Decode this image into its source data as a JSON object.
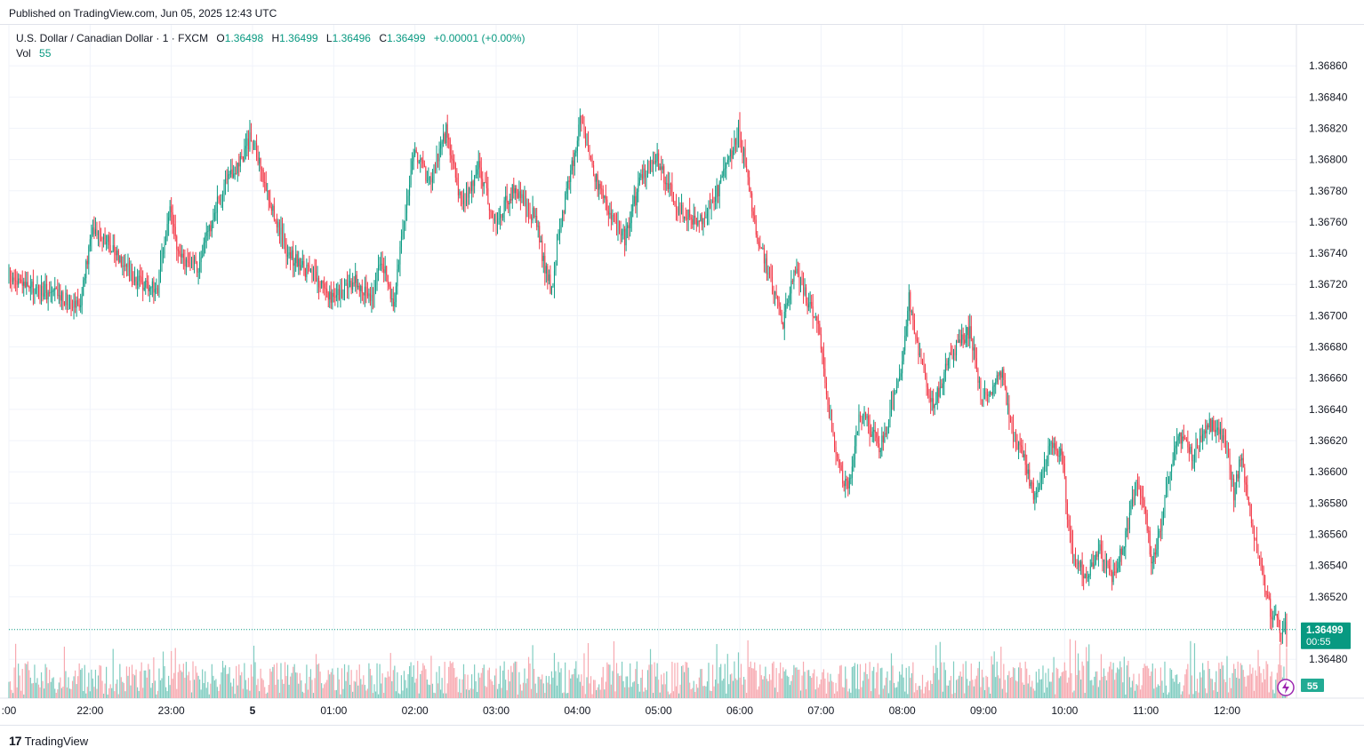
{
  "header": {
    "published": "Published on TradingView.com, Jun 05, 2025 12:43 UTC"
  },
  "legend": {
    "symbol": "U.S. Dollar / Canadian Dollar · 1 · FXCM",
    "o_label": "O",
    "o_value": "1.36498",
    "h_label": "H",
    "h_value": "1.36499",
    "l_label": "L",
    "l_value": "1.36496",
    "c_label": "C",
    "c_value": "1.36499",
    "change": "+0.00001 (+0.00%)",
    "vol_label": "Vol",
    "vol_value": "55"
  },
  "colors": {
    "up": "#089981",
    "down": "#f23645",
    "up_vol": "#7fccc0",
    "down_vol": "#f7a9b0",
    "grid": "#f0f3fa",
    "axis_text": "#131722"
  },
  "footer": {
    "brand_glyph": "17",
    "brand": "TradingView"
  },
  "chart_data": {
    "type": "candlestick",
    "symbol": "U.S. Dollar / Canadian Dollar",
    "interval": "1",
    "source": "FXCM",
    "y_ticks": [
      "1.36860",
      "1.36840",
      "1.36820",
      "1.36800",
      "1.36780",
      "1.36760",
      "1.36740",
      "1.36720",
      "1.36700",
      "1.36680",
      "1.36660",
      "1.36640",
      "1.36620",
      "1.36600",
      "1.36580",
      "1.36560",
      "1.36540",
      "1.36520",
      "1.36480"
    ],
    "ylim": [
      1.36475,
      1.36872
    ],
    "x_ticks": [
      ":00",
      "22:00",
      "23:00",
      "5",
      "01:00",
      "02:00",
      "03:00",
      "04:00",
      "05:00",
      "06:00",
      "07:00",
      "08:00",
      "09:00",
      "10:00",
      "11:00",
      "12:00"
    ],
    "x_tick_hours": [
      21.0,
      22.0,
      23.0,
      24.0,
      25.0,
      26.0,
      27.0,
      28.0,
      29.0,
      30.0,
      31.0,
      32.0,
      33.0,
      34.0,
      35.0,
      36.0
    ],
    "x_range_hours": [
      21.0,
      36.75
    ],
    "last_price": "1.36499",
    "countdown": "00:55",
    "last_volume": "55",
    "close_path": [
      [
        21.0,
        1.36725
      ],
      [
        21.25,
        1.36718
      ],
      [
        21.5,
        1.36715
      ],
      [
        21.9,
        1.36708
      ],
      [
        22.05,
        1.36758
      ],
      [
        22.35,
        1.3674
      ],
      [
        22.6,
        1.36722
      ],
      [
        22.85,
        1.36718
      ],
      [
        23.0,
        1.3677
      ],
      [
        23.1,
        1.36738
      ],
      [
        23.35,
        1.36732
      ],
      [
        23.6,
        1.36775
      ],
      [
        23.85,
        1.36798
      ],
      [
        24.0,
        1.36815
      ],
      [
        24.2,
        1.36778
      ],
      [
        24.45,
        1.3674
      ],
      [
        24.7,
        1.36728
      ],
      [
        25.0,
        1.36712
      ],
      [
        25.3,
        1.36722
      ],
      [
        25.5,
        1.36712
      ],
      [
        25.6,
        1.36738
      ],
      [
        25.75,
        1.36705
      ],
      [
        25.85,
        1.3675
      ],
      [
        26.0,
        1.36805
      ],
      [
        26.2,
        1.36785
      ],
      [
        26.4,
        1.36818
      ],
      [
        26.6,
        1.3677
      ],
      [
        26.8,
        1.36795
      ],
      [
        27.0,
        1.3676
      ],
      [
        27.25,
        1.36782
      ],
      [
        27.5,
        1.36762
      ],
      [
        27.6,
        1.36735
      ],
      [
        27.7,
        1.36715
      ],
      [
        27.8,
        1.36758
      ],
      [
        28.0,
        1.36808
      ],
      [
        28.05,
        1.3683
      ],
      [
        28.2,
        1.36795
      ],
      [
        28.4,
        1.36765
      ],
      [
        28.6,
        1.3675
      ],
      [
        28.8,
        1.36788
      ],
      [
        29.0,
        1.368
      ],
      [
        29.25,
        1.3677
      ],
      [
        29.5,
        1.36758
      ],
      [
        29.75,
        1.3678
      ],
      [
        30.0,
        1.36818
      ],
      [
        30.1,
        1.36795
      ],
      [
        30.2,
        1.36758
      ],
      [
        30.4,
        1.3672
      ],
      [
        30.55,
        1.36695
      ],
      [
        30.7,
        1.3673
      ],
      [
        30.85,
        1.3671
      ],
      [
        31.0,
        1.3669
      ],
      [
        31.1,
        1.36645
      ],
      [
        31.25,
        1.366
      ],
      [
        31.35,
        1.3659
      ],
      [
        31.5,
        1.3664
      ],
      [
        31.75,
        1.36615
      ],
      [
        32.0,
        1.36665
      ],
      [
        32.1,
        1.36712
      ],
      [
        32.2,
        1.3668
      ],
      [
        32.4,
        1.3664
      ],
      [
        32.6,
        1.36675
      ],
      [
        32.85,
        1.3669
      ],
      [
        33.0,
        1.36645
      ],
      [
        33.25,
        1.36665
      ],
      [
        33.35,
        1.3663
      ],
      [
        33.5,
        1.3661
      ],
      [
        33.65,
        1.36582
      ],
      [
        33.85,
        1.36618
      ],
      [
        34.0,
        1.3661
      ],
      [
        34.05,
        1.3657
      ],
      [
        34.15,
        1.3654
      ],
      [
        34.3,
        1.36535
      ],
      [
        34.45,
        1.36552
      ],
      [
        34.6,
        1.3653
      ],
      [
        34.8,
        1.36565
      ],
      [
        34.9,
        1.36595
      ],
      [
        35.0,
        1.36575
      ],
      [
        35.1,
        1.3654
      ],
      [
        35.25,
        1.3658
      ],
      [
        35.4,
        1.36625
      ],
      [
        35.6,
        1.3661
      ],
      [
        35.8,
        1.3663
      ],
      [
        36.0,
        1.3662
      ],
      [
        36.1,
        1.36585
      ],
      [
        36.2,
        1.36612
      ],
      [
        36.3,
        1.3657
      ],
      [
        36.45,
        1.36535
      ],
      [
        36.55,
        1.3651
      ],
      [
        36.7,
        1.36499
      ]
    ]
  }
}
